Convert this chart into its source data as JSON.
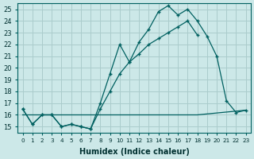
{
  "xlabel": "Humidex (Indice chaleur)",
  "background_color": "#cce8e8",
  "grid_color": "#aacccc",
  "line_color": "#006060",
  "xlim": [
    -0.5,
    23.5
  ],
  "ylim": [
    14.5,
    25.5
  ],
  "xticks": [
    0,
    1,
    2,
    3,
    4,
    5,
    6,
    7,
    8,
    9,
    10,
    11,
    12,
    13,
    14,
    15,
    16,
    17,
    18,
    19,
    20,
    21,
    22,
    23
  ],
  "yticks": [
    15,
    16,
    17,
    18,
    19,
    20,
    21,
    22,
    23,
    24,
    25
  ],
  "series1_x": [
    0,
    1,
    2,
    3,
    4,
    5,
    6,
    7,
    8,
    9,
    10,
    11,
    12,
    13,
    14,
    15,
    16,
    17,
    18,
    19,
    20,
    21,
    22,
    23
  ],
  "series1_y": [
    16.5,
    15.2,
    16.0,
    16.0,
    15.0,
    15.2,
    15.0,
    14.8,
    17.0,
    19.5,
    22.0,
    20.5,
    22.2,
    23.3,
    24.8,
    25.3,
    24.5,
    25.0,
    24.0,
    22.7,
    21.0,
    17.2,
    16.2,
    16.4
  ],
  "series2_x": [
    0,
    1,
    2,
    3,
    4,
    5,
    6,
    7,
    8,
    9,
    10,
    11,
    12,
    13,
    14,
    15,
    16,
    17,
    18
  ],
  "series2_y": [
    16.5,
    15.2,
    16.0,
    16.0,
    15.0,
    15.2,
    15.0,
    14.8,
    16.5,
    18.0,
    19.5,
    20.5,
    21.2,
    22.0,
    22.5,
    23.0,
    23.5,
    24.0,
    22.8
  ],
  "series3_x": [
    0,
    8,
    18,
    23
  ],
  "series3_y": [
    16.0,
    16.0,
    16.0,
    16.4
  ]
}
